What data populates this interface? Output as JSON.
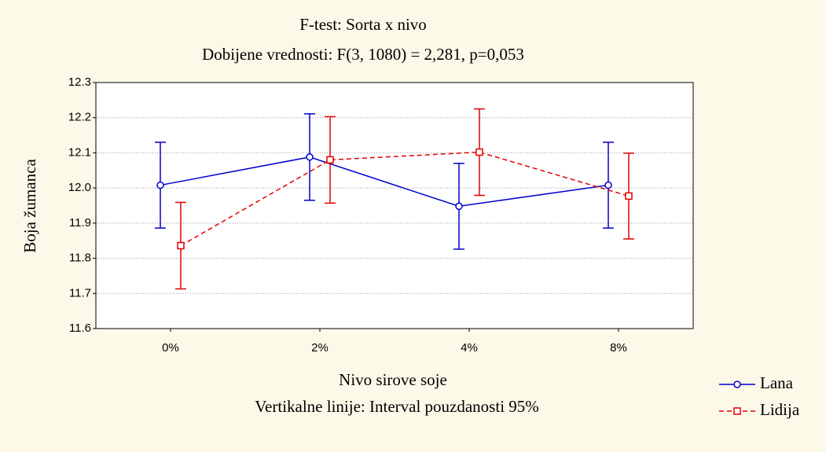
{
  "chart_data": {
    "type": "line",
    "title": "F-test: Sorta x nivo",
    "subtitle": "Dobijene vrednosti: F(3, 1080) = 2,281, p=0,053",
    "x_label": "Nivo sirove soje",
    "y_label": "Boja žumanca",
    "note": "Vertikalne linije: Interval pouzdanosti 95%",
    "categories": [
      "0%",
      "2%",
      "4%",
      "8%"
    ],
    "series": [
      {
        "name": "Lana",
        "color": "#0000cc",
        "values": [
          12.008,
          12.088,
          11.948,
          12.008
        ],
        "errors": [
          0.122,
          0.123,
          0.122,
          0.122
        ]
      },
      {
        "name": "Lidija",
        "color": "#e00000",
        "values": [
          11.836,
          12.08,
          12.102,
          11.977
        ],
        "errors": [
          0.123,
          0.123,
          0.123,
          0.122
        ]
      }
    ],
    "ylim": [
      11.6,
      12.3
    ],
    "yticks": [
      11.6,
      11.7,
      11.8,
      11.9,
      {
        "value": 12.0,
        "label": "12.0"
      },
      12.1,
      12.2,
      12.3
    ],
    "grid": true,
    "legend": "bottom-right"
  }
}
